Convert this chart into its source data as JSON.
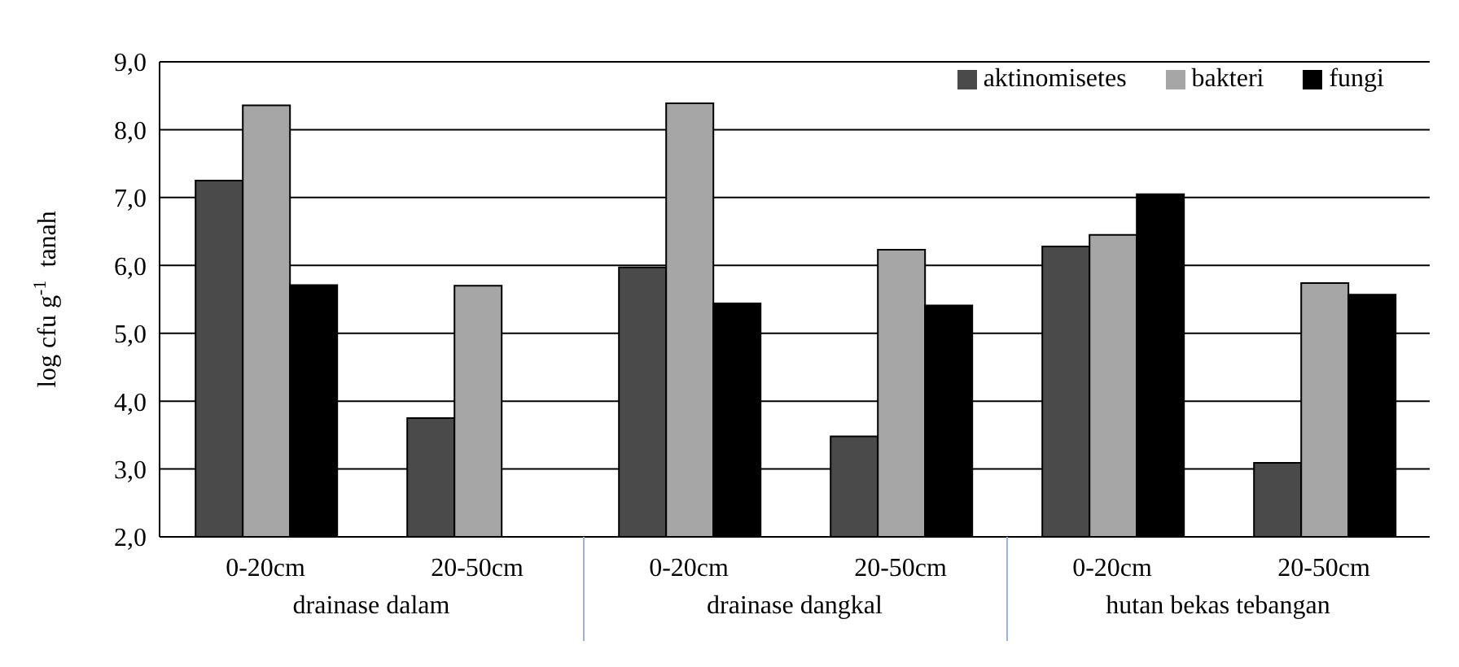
{
  "chart_data": {
    "type": "bar",
    "ylabel": "log cfu g$^{-1}$  tanah",
    "categories": [
      "0-20cm",
      "20-50cm",
      "0-20cm",
      "20-50cm",
      "0-20cm",
      "20-50cm"
    ],
    "annotations": [
      "drainase dalam",
      "drainase dangkal",
      "hutan bekas tebangan"
    ],
    "series": [
      {
        "name": "aktinomisetes",
        "color": "#4a4a4a",
        "values": [
          7.25,
          3.75,
          5.97,
          3.48,
          6.28,
          3.09
        ]
      },
      {
        "name": "bakteri",
        "color": "#a6a6a6",
        "values": [
          8.36,
          5.7,
          8.39,
          6.23,
          6.45,
          5.74
        ]
      },
      {
        "name": "fungi",
        "color": "#000000",
        "values": [
          5.71,
          null,
          5.44,
          5.41,
          7.05,
          5.57
        ]
      }
    ],
    "ylim": [
      2,
      9
    ],
    "yticks": [
      {
        "value": 2,
        "label": "2,0"
      },
      {
        "value": 3,
        "label": "3,0"
      },
      {
        "value": 4,
        "label": "4,0"
      },
      {
        "value": 5,
        "label": "5,0"
      },
      {
        "value": 6,
        "label": "6,0"
      },
      {
        "value": 7,
        "label": "7,0"
      },
      {
        "value": 8,
        "label": "8,0"
      },
      {
        "value": 9,
        "label": "9,0"
      }
    ],
    "grid": "y",
    "legend": "top right"
  }
}
